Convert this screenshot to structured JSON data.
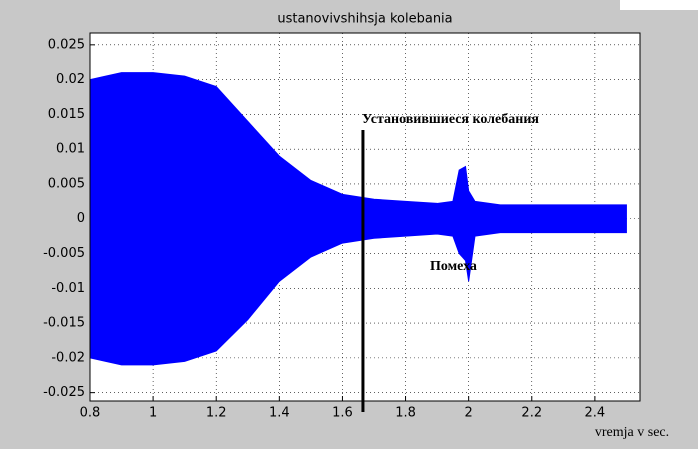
{
  "chart_data": {
    "type": "envelope",
    "title": "ustanovivshihsja kolebania",
    "x_label": "vremja v sec.",
    "x": [
      0.8,
      0.85,
      0.9,
      1.0,
      1.1,
      1.2,
      1.3,
      1.4,
      1.5,
      1.6,
      1.7,
      1.8,
      1.9,
      1.95,
      1.97,
      1.99,
      2.0,
      2.02,
      2.1,
      2.2,
      2.3,
      2.4,
      2.5
    ],
    "series": [
      {
        "color": "#0000ff",
        "values": [
          0.02,
          0.0205,
          0.021,
          0.021,
          0.0205,
          0.019,
          0.014,
          0.009,
          0.0055,
          0.0035,
          0.0028,
          0.0025,
          0.0022,
          0.0025,
          0.007,
          0.0075,
          0.004,
          0.0025,
          0.002,
          0.002,
          0.002,
          0.002,
          0.002
        ]
      },
      {
        "color": "#0000ff",
        "values": [
          -0.02,
          -0.0205,
          -0.021,
          -0.021,
          -0.0205,
          -0.019,
          -0.0145,
          -0.009,
          -0.0055,
          -0.0035,
          -0.0028,
          -0.0025,
          -0.0022,
          -0.0025,
          -0.005,
          -0.006,
          -0.009,
          -0.0025,
          -0.002,
          -0.002,
          -0.002,
          -0.002,
          -0.002
        ]
      }
    ],
    "xlim": [
      0.8,
      2.543
    ],
    "ylim": [
      -0.0262,
      0.0267
    ],
    "xticks": [
      0.8,
      1,
      1.2,
      1.4,
      1.6,
      1.8,
      2,
      2.2,
      2.4
    ],
    "yticks": [
      -0.025,
      -0.02,
      -0.015,
      -0.01,
      -0.005,
      0,
      0.005,
      0.01,
      0.015,
      0.02,
      0.025
    ],
    "grid": true,
    "marker_line_x": 1.665,
    "annotations": [
      "Установившиеся колебания",
      "Помеха"
    ]
  }
}
